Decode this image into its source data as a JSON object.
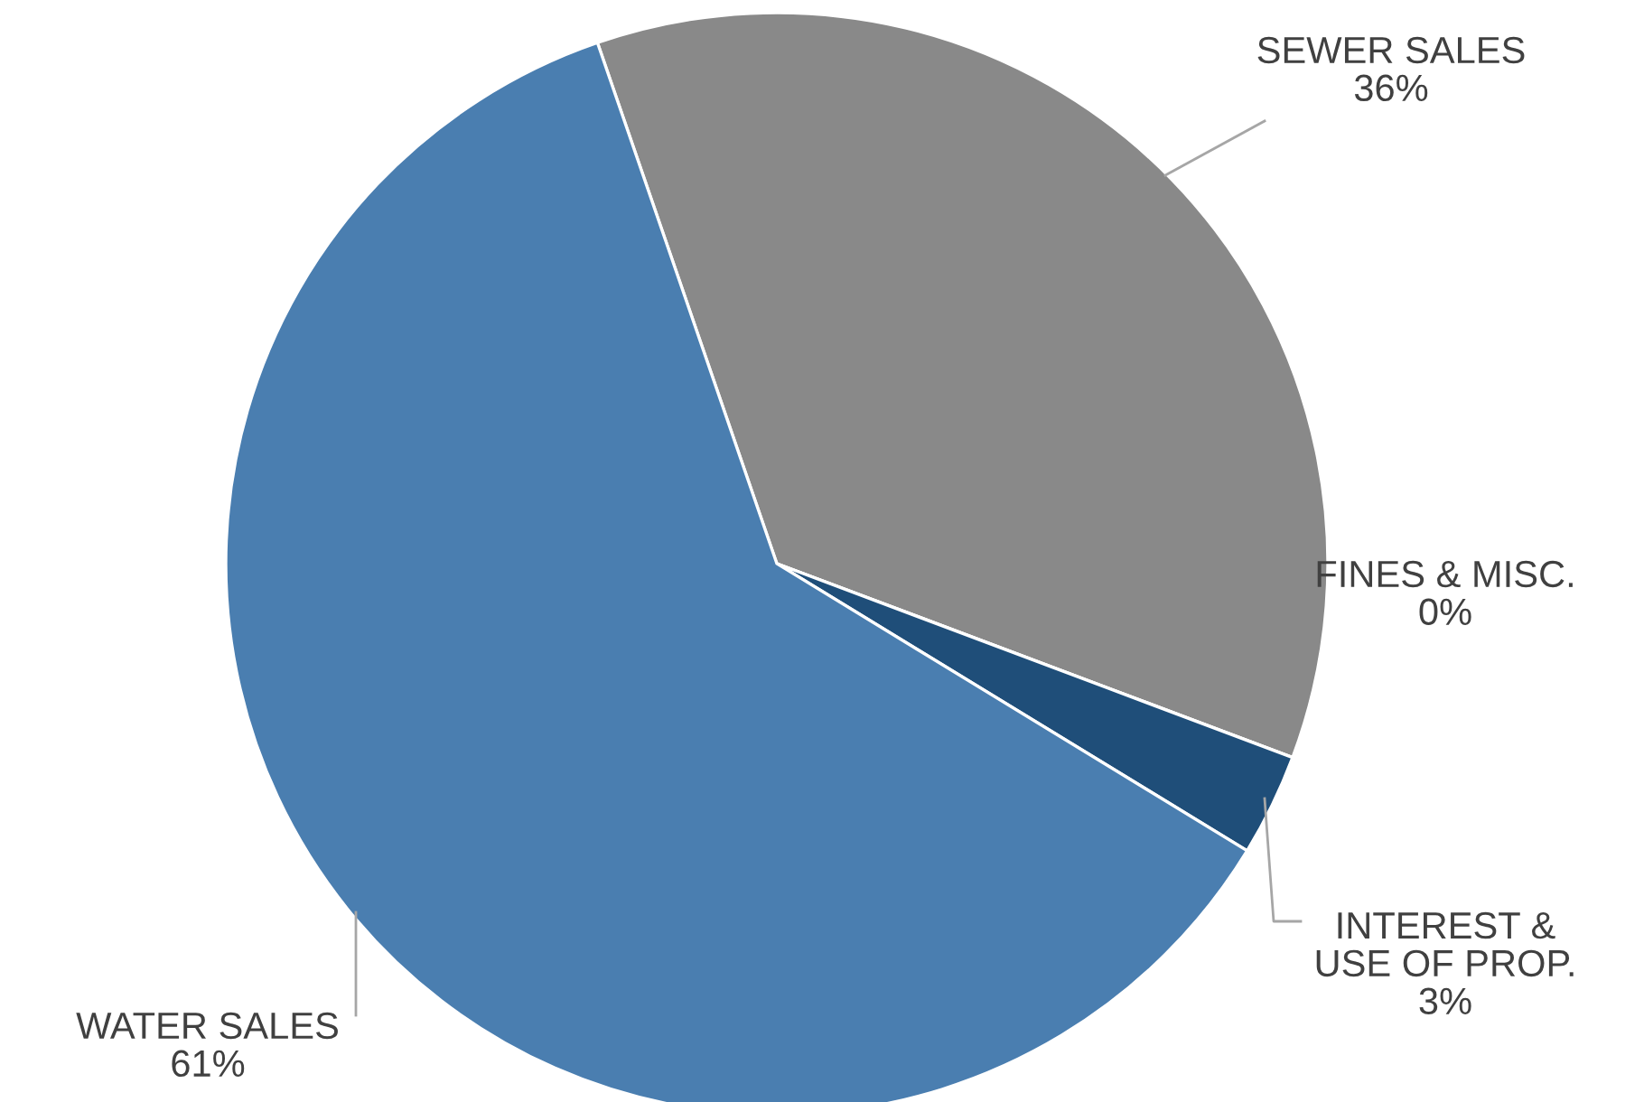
{
  "chart_data": {
    "type": "pie",
    "categories": [
      "SEWER SALES",
      "FINES & MISC.",
      "INTEREST & USE OF PROP.",
      "WATER SALES"
    ],
    "values": [
      36,
      0,
      3,
      61
    ],
    "value_labels": [
      "36%",
      "0%",
      "3%",
      "61%"
    ],
    "colors": [
      "#898989",
      "#3b5fa8",
      "#1f4e79",
      "#4a7eb0"
    ]
  }
}
